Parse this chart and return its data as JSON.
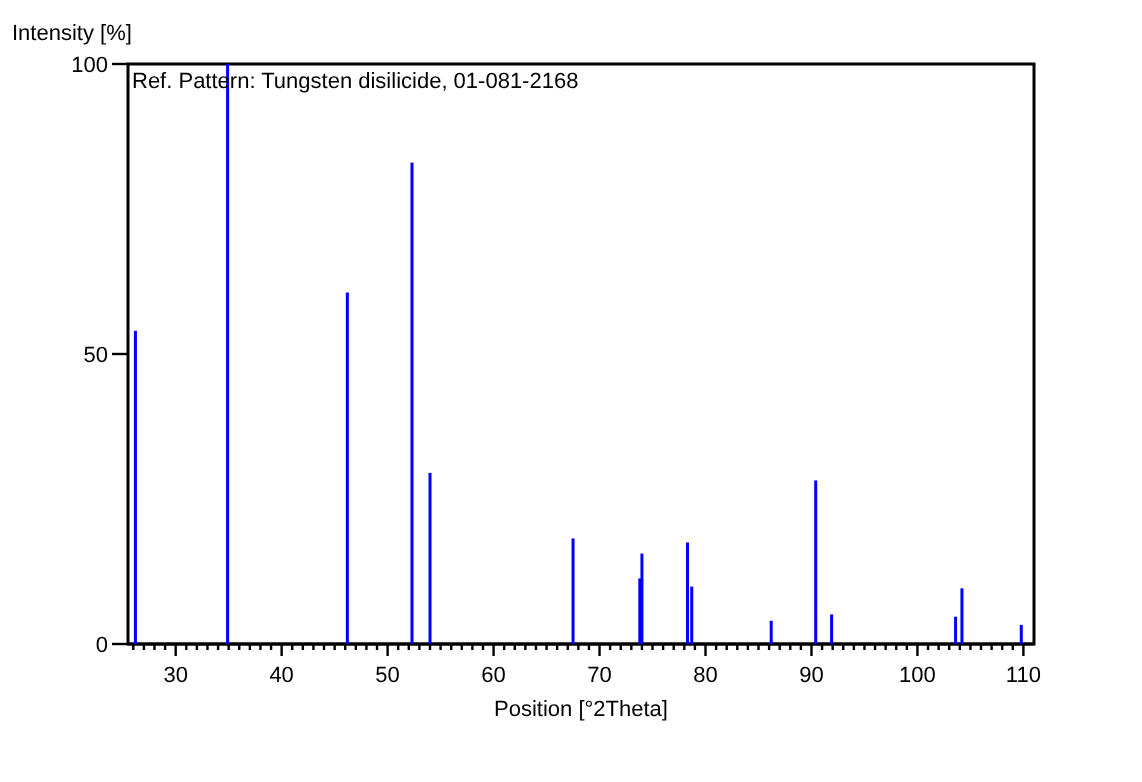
{
  "chart_data": {
    "type": "bar",
    "xlabel": "Position [°2Theta]",
    "ylabel": "Intensity [%]",
    "annotations": [
      "Ref. Pattern: Tungsten disilicide, 01-081-2168"
    ],
    "x": [
      26.2,
      34.9,
      46.2,
      52.3,
      54.0,
      67.5,
      73.8,
      74.0,
      78.3,
      78.7,
      86.2,
      90.4,
      91.9,
      103.6,
      104.2,
      109.8
    ],
    "values": [
      54,
      100,
      60.6,
      83,
      29.5,
      18.2,
      11.3,
      15.6,
      17.5,
      9.9,
      4.0,
      28.2,
      5.1,
      4.7,
      9.6,
      3.3
    ],
    "color": "#0000ff",
    "xlim": [
      25.5,
      111
    ],
    "ylim": [
      0,
      100
    ],
    "xticks": [
      {
        "value": 26,
        "label": null
      },
      {
        "value": 27,
        "label": null
      },
      {
        "value": 28,
        "label": null
      },
      {
        "value": 29,
        "label": null
      },
      30,
      {
        "value": 31,
        "label": null
      },
      {
        "value": 32,
        "label": null
      },
      {
        "value": 33,
        "label": null
      },
      {
        "value": 34,
        "label": null
      },
      {
        "value": 35,
        "label": null
      },
      {
        "value": 36,
        "label": null
      },
      {
        "value": 37,
        "label": null
      },
      {
        "value": 38,
        "label": null
      },
      {
        "value": 39,
        "label": null
      },
      40,
      {
        "value": 41,
        "label": null
      },
      {
        "value": 42,
        "label": null
      },
      {
        "value": 43,
        "label": null
      },
      {
        "value": 44,
        "label": null
      },
      {
        "value": 45,
        "label": null
      },
      {
        "value": 46,
        "label": null
      },
      {
        "value": 47,
        "label": null
      },
      {
        "value": 48,
        "label": null
      },
      {
        "value": 49,
        "label": null
      },
      50,
      {
        "value": 51,
        "label": null
      },
      {
        "value": 52,
        "label": null
      },
      {
        "value": 53,
        "label": null
      },
      {
        "value": 54,
        "label": null
      },
      {
        "value": 55,
        "label": null
      },
      {
        "value": 56,
        "label": null
      },
      {
        "value": 57,
        "label": null
      },
      {
        "value": 58,
        "label": null
      },
      {
        "value": 59,
        "label": null
      },
      60,
      {
        "value": 61,
        "label": null
      },
      {
        "value": 62,
        "label": null
      },
      {
        "value": 63,
        "label": null
      },
      {
        "value": 64,
        "label": null
      },
      {
        "value": 65,
        "label": null
      },
      {
        "value": 66,
        "label": null
      },
      {
        "value": 67,
        "label": null
      },
      {
        "value": 68,
        "label": null
      },
      {
        "value": 69,
        "label": null
      },
      70,
      {
        "value": 71,
        "label": null
      },
      {
        "value": 72,
        "label": null
      },
      {
        "value": 73,
        "label": null
      },
      {
        "value": 74,
        "label": null
      },
      {
        "value": 75,
        "label": null
      },
      {
        "value": 76,
        "label": null
      },
      {
        "value": 77,
        "label": null
      },
      {
        "value": 78,
        "label": null
      },
      {
        "value": 79,
        "label": null
      },
      80,
      {
        "value": 81,
        "label": null
      },
      {
        "value": 82,
        "label": null
      },
      {
        "value": 83,
        "label": null
      },
      {
        "value": 84,
        "label": null
      },
      {
        "value": 85,
        "label": null
      },
      {
        "value": 86,
        "label": null
      },
      {
        "value": 87,
        "label": null
      },
      {
        "value": 88,
        "label": null
      },
      {
        "value": 89,
        "label": null
      },
      90,
      {
        "value": 91,
        "label": null
      },
      {
        "value": 92,
        "label": null
      },
      {
        "value": 93,
        "label": null
      },
      {
        "value": 94,
        "label": null
      },
      {
        "value": 95,
        "label": null
      },
      {
        "value": 96,
        "label": null
      },
      {
        "value": 97,
        "label": null
      },
      {
        "value": 98,
        "label": null
      },
      {
        "value": 99,
        "label": null
      },
      100,
      {
        "value": 101,
        "label": null
      },
      {
        "value": 102,
        "label": null
      },
      {
        "value": 103,
        "label": null
      },
      {
        "value": 104,
        "label": null
      },
      {
        "value": 105,
        "label": null
      },
      {
        "value": 106,
        "label": null
      },
      {
        "value": 107,
        "label": null
      },
      {
        "value": 108,
        "label": null
      },
      {
        "value": 109,
        "label": null
      },
      110
    ],
    "yticks": [
      0,
      50,
      100
    ],
    "grid": false
  }
}
